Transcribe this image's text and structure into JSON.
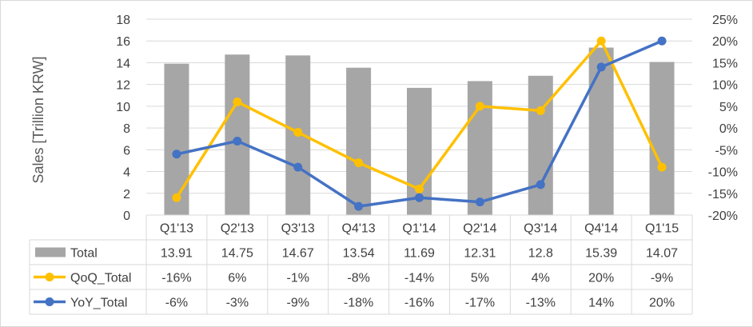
{
  "chart_data": {
    "type": "bar",
    "categories": [
      "Q1'13",
      "Q2'13",
      "Q3'13",
      "Q4'13",
      "Q1'14",
      "Q2'14",
      "Q3'14",
      "Q4'14",
      "Q1'15"
    ],
    "ylabel": "Sales [Trillion KRW]",
    "ylim": [
      0,
      18
    ],
    "yticks": [
      "0",
      "2",
      "4",
      "6",
      "8",
      "10",
      "12",
      "14",
      "16",
      "18"
    ],
    "y2lim": [
      -20,
      25
    ],
    "y2ticks": [
      "-20%",
      "-15%",
      "-10%",
      "-5%",
      "0%",
      "5%",
      "10%",
      "15%",
      "20%",
      "25%"
    ],
    "grid": true,
    "legend": "data-table",
    "series": [
      {
        "name": "Total",
        "kind": "bar",
        "axis": "left",
        "color": "#a6a6a6",
        "values": [
          13.91,
          14.75,
          14.67,
          13.54,
          11.69,
          12.31,
          12.8,
          15.39,
          14.07
        ],
        "labels": [
          "13.91",
          "14.75",
          "14.67",
          "13.54",
          "11.69",
          "12.31",
          "12.8",
          "15.39",
          "14.07"
        ]
      },
      {
        "name": "QoQ_Total",
        "kind": "line",
        "axis": "right",
        "color": "#ffc000",
        "values": [
          -16,
          6,
          -1,
          -8,
          -14,
          5,
          4,
          20,
          -9
        ],
        "labels": [
          "-16%",
          "6%",
          "-1%",
          "-8%",
          "-14%",
          "5%",
          "4%",
          "20%",
          "-9%"
        ]
      },
      {
        "name": "YoY_Total",
        "kind": "line",
        "axis": "right",
        "color": "#4472c4",
        "values": [
          -6,
          -3,
          -9,
          -18,
          -16,
          -17,
          -13,
          14,
          20
        ],
        "labels": [
          "-6%",
          "-3%",
          "-9%",
          "-18%",
          "-16%",
          "-17%",
          "-13%",
          "14%",
          "20%"
        ]
      }
    ]
  }
}
